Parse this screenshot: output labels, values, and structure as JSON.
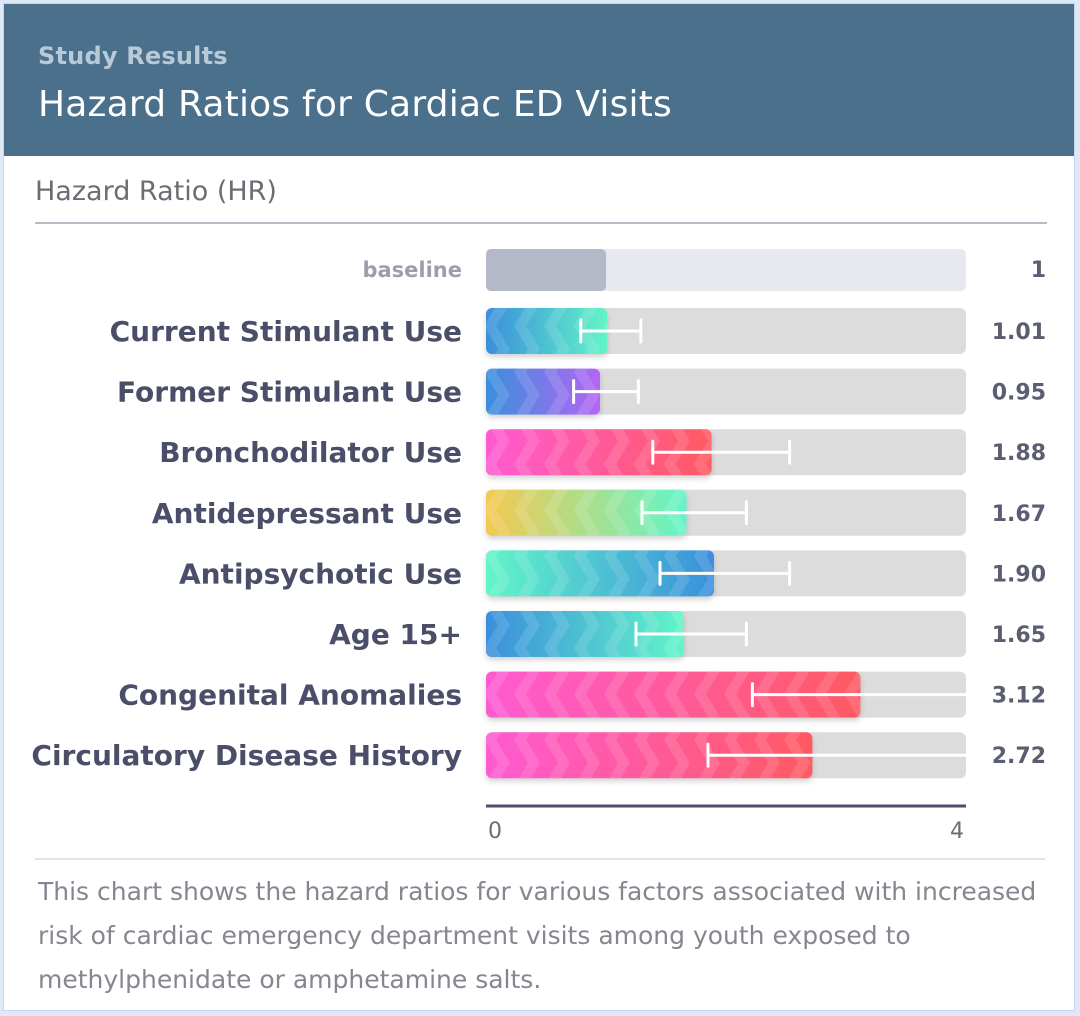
{
  "header": {
    "eyebrow": "Study Results",
    "title": "Hazard Ratios for Cardiac ED Visits"
  },
  "footnote": "This chart shows the hazard ratios for various factors associated with increased risk of cardiac emergency department visits among youth exposed to methylphenidate or amphetamine salts.",
  "chart_data": {
    "type": "bar",
    "orientation": "horizontal",
    "title": "Hazard Ratios for Cardiac ED Visits",
    "ylabel": "Hazard Ratio (HR)",
    "xlabel": "",
    "xlim": [
      0,
      4
    ],
    "x_ticks": [
      "0",
      "4"
    ],
    "grid": false,
    "legend": "none",
    "baseline": {
      "label": "baseline",
      "value": 1,
      "value_label": "1",
      "color": "#b3b9c6"
    },
    "categories": [
      "Current Stimulant Use",
      "Former Stimulant Use",
      "Bronchodilator Use",
      "Antidepressant Use",
      "Antipsychotic Use",
      "Age 15+",
      "Congenital Anomalies",
      "Circulatory Disease History"
    ],
    "values": [
      1.01,
      0.95,
      1.88,
      1.67,
      1.9,
      1.65,
      3.12,
      2.72
    ],
    "value_labels": [
      "1.01",
      "0.95",
      "1.88",
      "1.67",
      "1.90",
      "1.65",
      "3.12",
      "2.72"
    ],
    "ci_lower": [
      0.79,
      0.73,
      1.39,
      1.3,
      1.45,
      1.25,
      2.22,
      1.85
    ],
    "ci_upper": [
      1.29,
      1.27,
      2.53,
      2.17,
      2.53,
      2.17,
      4.0,
      4.0
    ],
    "bar_gradients": [
      [
        "#3a8fdc",
        "#62f5c8"
      ],
      [
        "#3a8fdc",
        "#b465f5"
      ],
      [
        "#ff5ad2",
        "#ff5a62"
      ],
      [
        "#f5c850",
        "#62f5c8"
      ],
      [
        "#62f5c8",
        "#3a8fdc"
      ],
      [
        "#3a8fdc",
        "#62f5c8"
      ],
      [
        "#ff5ad2",
        "#ff5a62"
      ],
      [
        "#ff5ad2",
        "#ff5a62"
      ]
    ],
    "track_color": "#dcdcdc"
  }
}
